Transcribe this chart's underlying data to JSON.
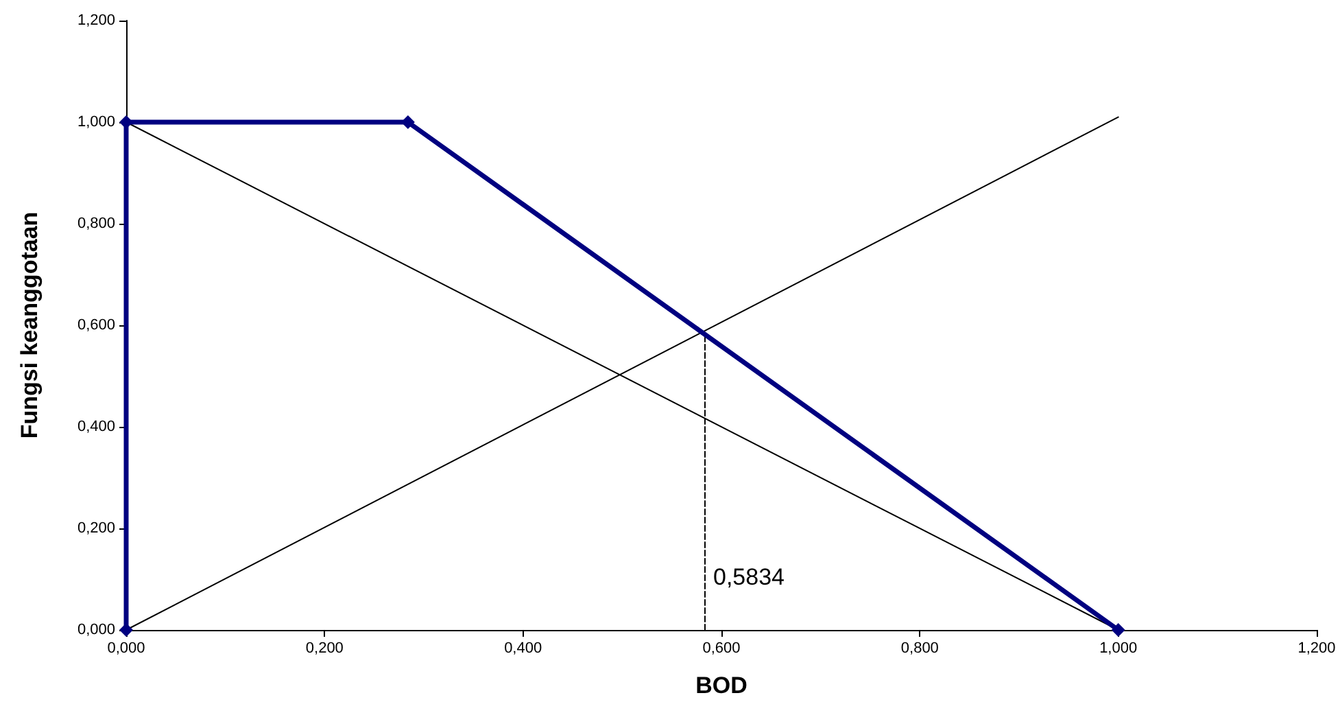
{
  "chart_data": {
    "type": "line",
    "xlabel": "BOD",
    "ylabel": "Fungsi keanggotaan",
    "xlim": [
      0,
      1.2
    ],
    "ylim": [
      0,
      1.2
    ],
    "xticks": [
      {
        "value": 0,
        "label": "0,000"
      },
      {
        "value": 0.2,
        "label": "0,200"
      },
      {
        "value": 0.4,
        "label": "0,400"
      },
      {
        "value": 0.6,
        "label": "0,600"
      },
      {
        "value": 0.8,
        "label": "0,800"
      },
      {
        "value": 1,
        "label": "1,000"
      },
      {
        "value": 1.2,
        "label": "1,200"
      }
    ],
    "yticks": [
      {
        "value": 0,
        "label": "0,000"
      },
      {
        "value": 0.2,
        "label": "0,200"
      },
      {
        "value": 0.4,
        "label": "0,400"
      },
      {
        "value": 0.6,
        "label": "0,600"
      },
      {
        "value": 0.8,
        "label": "0,800"
      },
      {
        "value": 1,
        "label": "1,000"
      },
      {
        "value": 1.2,
        "label": "1,200"
      }
    ],
    "grid": false,
    "series": [
      {
        "color": "#000000",
        "x": [
          0,
          1
        ],
        "values": [
          1,
          0
        ],
        "marker": "none",
        "line_style": "solid"
      },
      {
        "color": "#000000",
        "x": [
          0,
          1
        ],
        "values": [
          0,
          1.01
        ],
        "marker": "none",
        "line_style": "solid"
      },
      {
        "color": "#000000",
        "x": [
          0.5834,
          0.5834
        ],
        "values": [
          0,
          0.582
        ],
        "marker": "none",
        "line_style": "dashed"
      },
      {
        "color": "#000080",
        "x": [
          0,
          0,
          0.284,
          1
        ],
        "values": [
          0,
          1,
          1,
          0
        ],
        "marker": "diamond",
        "line_style": "solid"
      }
    ],
    "annotations": [
      {
        "text": "0,5834",
        "x": 0.5834,
        "y": 0.1
      }
    ]
  }
}
